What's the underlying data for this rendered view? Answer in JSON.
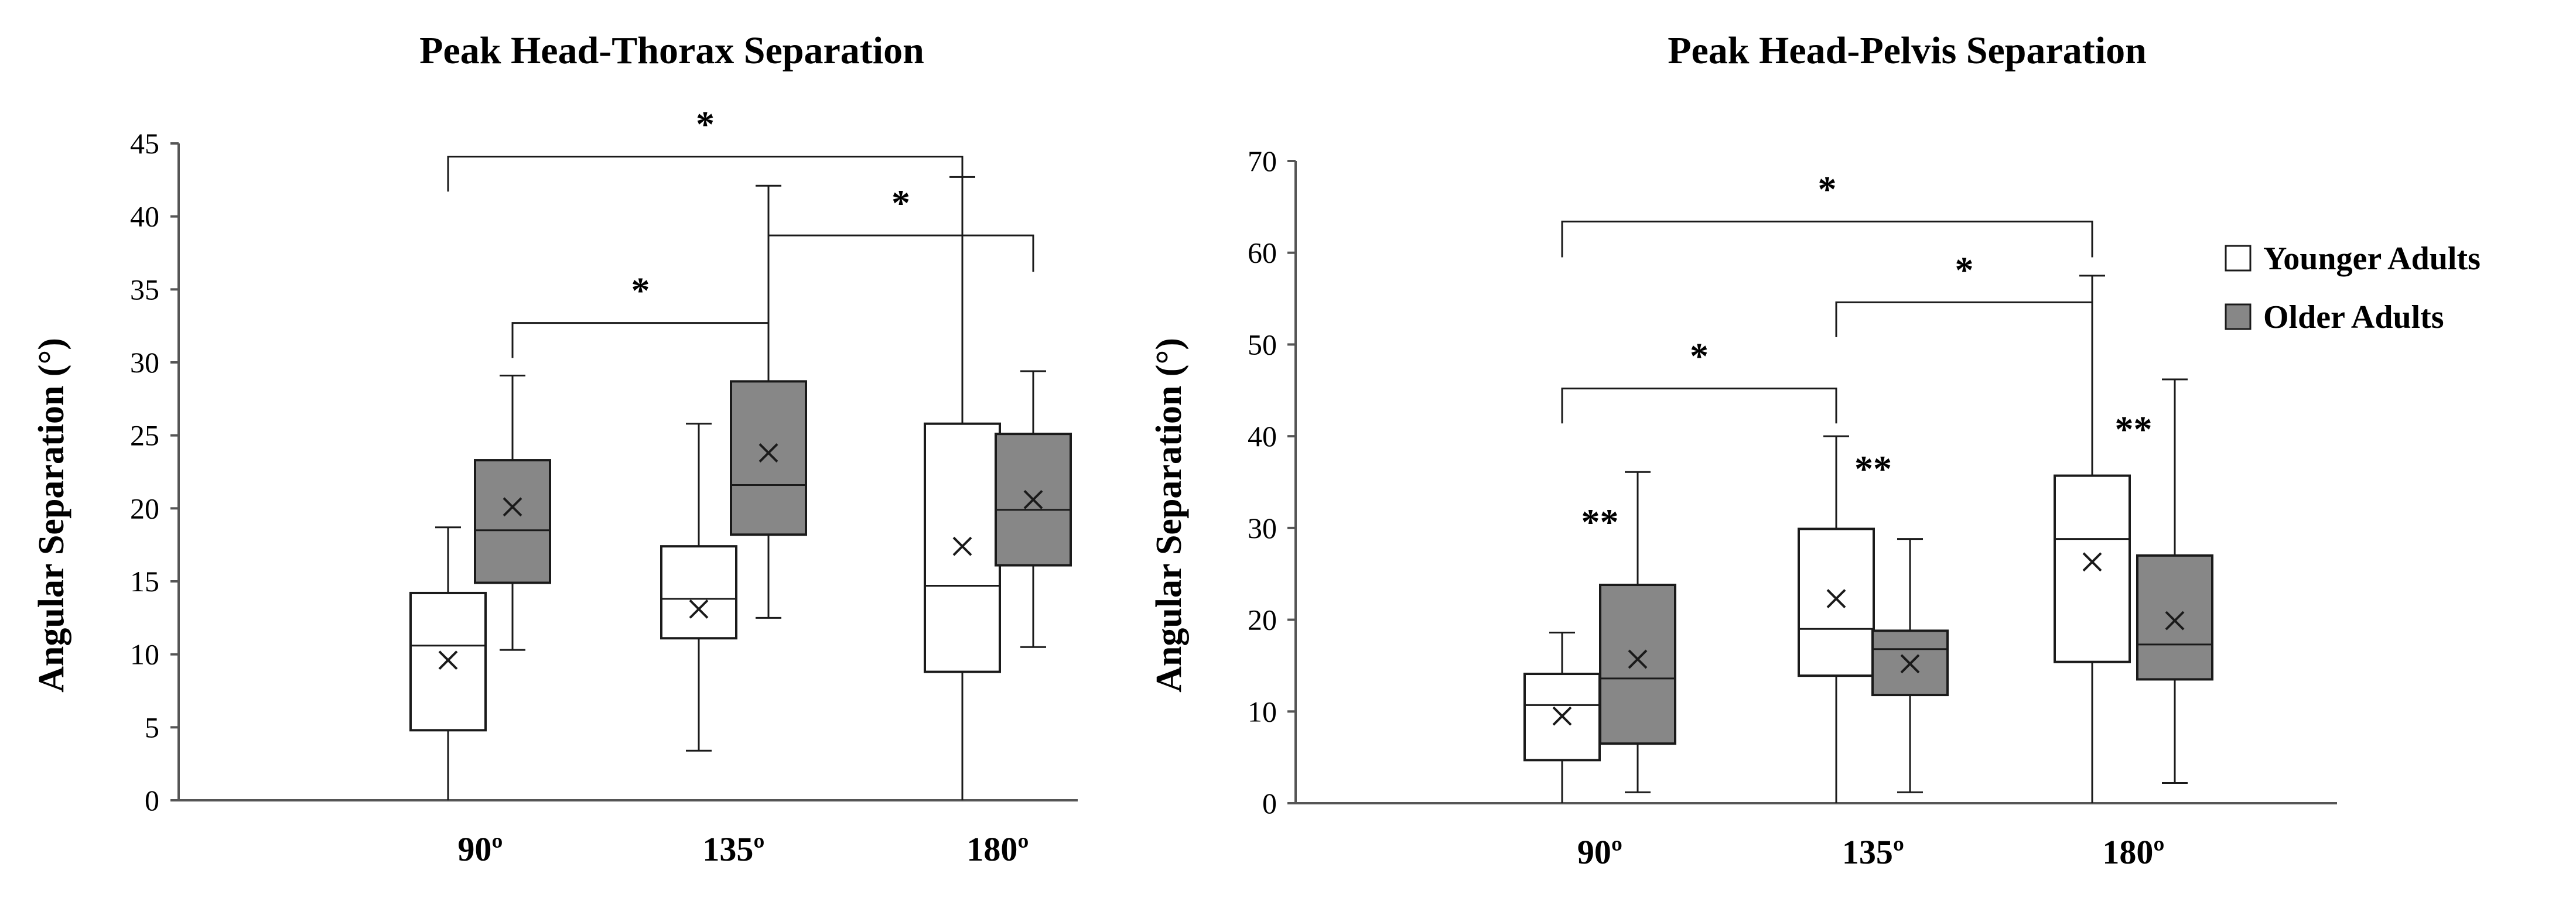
{
  "colors": {
    "younger_fill": "#ffffff",
    "older_fill": "#878787",
    "stroke": "#1a1a1a",
    "axis": "#555555"
  },
  "legend": {
    "items": [
      {
        "label": "Younger Adults",
        "color": "#ffffff"
      },
      {
        "label": "Older Adults",
        "color": "#878787"
      }
    ]
  },
  "chart_data": [
    {
      "type": "box",
      "title": "Peak Head-Thorax Separation",
      "xlabel": "",
      "ylabel": "Angular Separation (°)",
      "ylim": [
        0,
        45
      ],
      "yticks": [
        0,
        5,
        10,
        15,
        20,
        25,
        30,
        35,
        40,
        45
      ],
      "categories": [
        "90º",
        "135º",
        "180º"
      ],
      "series": [
        {
          "name": "Younger Adults",
          "boxes": [
            {
              "min": 0,
              "q1": 4.8,
              "median": 10.6,
              "q3": 14.2,
              "max": 18.7,
              "mean": 9.6
            },
            {
              "min": 3.4,
              "q1": 11.1,
              "median": 13.8,
              "q3": 17.4,
              "max": 25.8,
              "mean": 13.1
            },
            {
              "min": 0,
              "q1": 8.8,
              "median": 14.7,
              "q3": 25.8,
              "max": 42.7,
              "mean": 17.4
            }
          ]
        },
        {
          "name": "Older Adults",
          "boxes": [
            {
              "min": 10.3,
              "q1": 14.9,
              "median": 18.5,
              "q3": 23.3,
              "max": 29.1,
              "mean": 20.1
            },
            {
              "min": 12.5,
              "q1": 18.2,
              "median": 21.6,
              "q3": 28.7,
              "max": 42.1,
              "mean": 23.8
            },
            {
              "min": 10.5,
              "q1": 16.1,
              "median": 19.9,
              "q3": 25.1,
              "max": 29.4,
              "mean": 20.6
            }
          ]
        }
      ],
      "significance": [
        {
          "label": "*",
          "from": [
            "90º",
            "Younger Adults"
          ],
          "to": [
            "180º",
            "Younger Adults"
          ],
          "y": 44.1,
          "drop": 2.4
        },
        {
          "label": "*",
          "from": [
            "135º",
            "Older Adults"
          ],
          "to": [
            "180º",
            "Older Adults"
          ],
          "y": 38.7,
          "drop": 2.5
        },
        {
          "label": "*",
          "from": [
            "90º",
            "Older Adults"
          ],
          "to": [
            "135º",
            "Older Adults"
          ],
          "y": 32.7,
          "drop": 2.4
        }
      ],
      "group_markers": []
    },
    {
      "type": "box",
      "title": "Peak Head-Pelvis Separation",
      "xlabel": "",
      "ylabel": "Angular Separation (°)",
      "ylim": [
        0,
        70
      ],
      "yticks": [
        0,
        10,
        20,
        30,
        40,
        50,
        60,
        70
      ],
      "categories": [
        "90º",
        "135º",
        "180º"
      ],
      "series": [
        {
          "name": "Younger Adults",
          "boxes": [
            {
              "min": 0,
              "q1": 4.7,
              "median": 10.7,
              "q3": 14.1,
              "max": 18.6,
              "mean": 9.5
            },
            {
              "min": 0,
              "q1": 13.9,
              "median": 19.0,
              "q3": 29.9,
              "max": 40.0,
              "mean": 22.3
            },
            {
              "min": 0,
              "q1": 15.4,
              "median": 28.8,
              "q3": 35.7,
              "max": 57.5,
              "mean": 26.3
            }
          ]
        },
        {
          "name": "Older Adults",
          "boxes": [
            {
              "min": 1.2,
              "q1": 6.5,
              "median": 13.6,
              "q3": 23.8,
              "max": 36.1,
              "mean": 15.7
            },
            {
              "min": 1.2,
              "q1": 11.8,
              "median": 16.8,
              "q3": 18.8,
              "max": 28.8,
              "mean": 15.2
            },
            {
              "min": 2.2,
              "q1": 13.5,
              "median": 17.3,
              "q3": 27.0,
              "max": 46.2,
              "mean": 19.9
            }
          ]
        }
      ],
      "significance": [
        {
          "label": "*",
          "from": [
            "90º",
            "Younger Adults"
          ],
          "to": [
            "180º",
            "Younger Adults"
          ],
          "y": 63.4,
          "drop": 3.9
        },
        {
          "label": "*",
          "from": [
            "135º",
            "Younger Adults"
          ],
          "to": [
            "180º",
            "Younger Adults"
          ],
          "y": 54.6,
          "drop": 3.8
        },
        {
          "label": "*",
          "from": [
            "90º",
            "Younger Adults"
          ],
          "to": [
            "135º",
            "Younger Adults"
          ],
          "y": 45.2,
          "drop": 3.8
        }
      ],
      "group_markers": [
        {
          "label": "**",
          "category": "90º",
          "y": 30.7
        },
        {
          "label": "**",
          "category": "135º",
          "y": 36.5
        },
        {
          "label": "**",
          "category": "180º",
          "y": 40.8
        }
      ]
    }
  ]
}
